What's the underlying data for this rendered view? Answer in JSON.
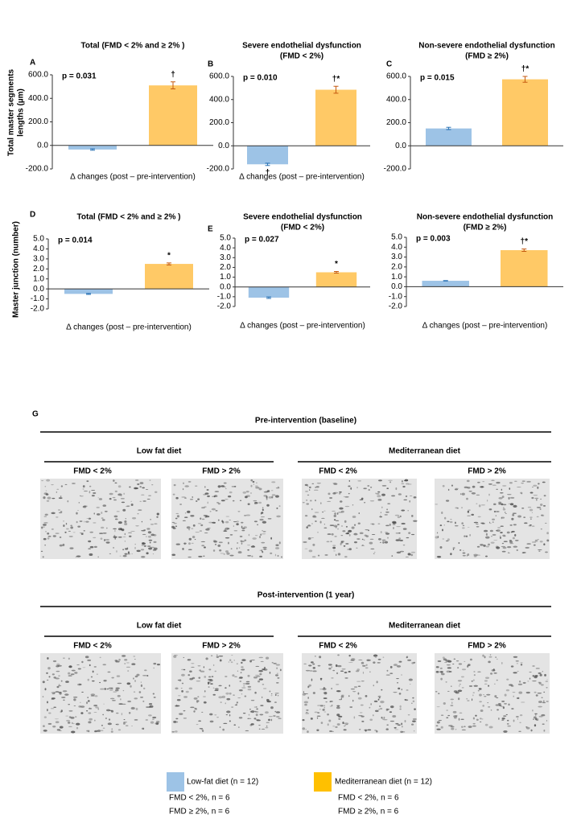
{
  "chart_data": [
    {
      "type": "bar",
      "panel": "A",
      "title": "Total (FMD < 2% and ≥ 2% )",
      "annotation": "p = 0.031",
      "ylabel": [
        "Total master segments",
        "lengths (µm)"
      ],
      "xlabel": "Δ changes (post – pre-intervention)",
      "values": [
        -35,
        510
      ],
      "errors": [
        6,
        30
      ],
      "markers": [
        null,
        "†"
      ],
      "colors": [
        "#9dc3e6",
        "#ffc966"
      ],
      "ylim": [
        -200,
        600
      ],
      "yticks": [
        {
          "value": 600,
          "label": "600.0"
        },
        {
          "value": 400,
          "label": "400.0"
        },
        {
          "value": 200,
          "label": "200.0"
        },
        {
          "value": 0,
          "label": "0.0"
        },
        {
          "value": -200,
          "label": "-200.0"
        }
      ]
    },
    {
      "type": "bar",
      "panel": "B",
      "title": "Severe endothelial dysfunction",
      "subtitle": "(FMD < 2%)",
      "annotation": "p = 0.010",
      "xlabel": "Δ changes (post – pre-intervention)",
      "values": [
        -160,
        485
      ],
      "errors": [
        10,
        30
      ],
      "markers": [
        "†",
        "†*"
      ],
      "colors": [
        "#9dc3e6",
        "#ffc966"
      ],
      "ylim": [
        -200,
        600
      ],
      "yticks": [
        {
          "value": 600,
          "label": "600.0"
        },
        {
          "value": 400,
          "label": "400.0"
        },
        {
          "value": 200,
          "label": "200.0"
        },
        {
          "value": 0,
          "label": "0.0"
        },
        {
          "value": -200,
          "label": "-200.0"
        }
      ]
    },
    {
      "type": "bar",
      "panel": "C",
      "title": "Non-severe endothelial dysfunction",
      "subtitle": "(FMD ≥ 2%)",
      "annotation": "p = 0.015",
      "values": [
        150,
        575
      ],
      "errors": [
        10,
        25
      ],
      "markers": [
        null,
        "†*"
      ],
      "colors": [
        "#9dc3e6",
        "#ffc966"
      ],
      "ylim": [
        -200,
        600
      ],
      "yticks": [
        {
          "value": 600,
          "label": "600.0"
        },
        {
          "value": 400,
          "label": "400.0"
        },
        {
          "value": 200,
          "label": "200.0"
        },
        {
          "value": 0,
          "label": "0.0"
        },
        {
          "value": -200,
          "label": "-200.0"
        }
      ]
    },
    {
      "type": "bar",
      "panel": "D",
      "title": "Total (FMD < 2% and ≥ 2% )",
      "annotation": "p = 0.014",
      "ylabel": [
        "Master junction (number)"
      ],
      "xlabel": "Δ changes (post – pre-intervention)",
      "values": [
        -0.5,
        2.5
      ],
      "errors": [
        0.05,
        0.1
      ],
      "markers": [
        null,
        "*"
      ],
      "colors": [
        "#9dc3e6",
        "#ffc966"
      ],
      "ylim": [
        -2,
        5
      ],
      "yticks": [
        {
          "value": 5,
          "label": "5.0"
        },
        {
          "value": 4,
          "label": "4.0"
        },
        {
          "value": 3,
          "label": "3.0"
        },
        {
          "value": 2,
          "label": "2.0"
        },
        {
          "value": 1,
          "label": "1.0"
        },
        {
          "value": 0,
          "label": "0.0"
        },
        {
          "value": -1,
          "label": "-1.0"
        },
        {
          "value": -2,
          "label": "-2.0"
        }
      ]
    },
    {
      "type": "bar",
      "panel": "E",
      "title": "Severe endothelial dysfunction",
      "subtitle": "(FMD < 2%)",
      "annotation": "p = 0.027",
      "xlabel": "Δ changes (post – pre-intervention)",
      "values": [
        -1.1,
        1.5
      ],
      "errors": [
        0.08,
        0.08
      ],
      "markers": [
        null,
        "*"
      ],
      "colors": [
        "#9dc3e6",
        "#ffc966"
      ],
      "ylim": [
        -2,
        5
      ],
      "yticks": [
        {
          "value": 5,
          "label": "5.0"
        },
        {
          "value": 4,
          "label": "4.0"
        },
        {
          "value": 3,
          "label": "3.0"
        },
        {
          "value": 2,
          "label": "2.0"
        },
        {
          "value": 1,
          "label": "1.0"
        },
        {
          "value": 0,
          "label": "0.0"
        },
        {
          "value": -1,
          "label": "-1.0"
        },
        {
          "value": -2,
          "label": "-2.0"
        }
      ]
    },
    {
      "type": "bar",
      "title": "Non-severe endothelial dysfunction",
      "subtitle": "(FMD ≥ 2%)",
      "annotation": "p = 0.003",
      "xlabel": "Δ changes (post – pre-intervention)",
      "values": [
        0.6,
        3.7
      ],
      "errors": [
        0.03,
        0.12
      ],
      "markers": [
        null,
        "†*"
      ],
      "colors": [
        "#9dc3e6",
        "#ffc966"
      ],
      "ylim": [
        -2,
        5
      ],
      "yticks": [
        {
          "value": 5,
          "label": "5.0"
        },
        {
          "value": 4,
          "label": "4.0"
        },
        {
          "value": 3,
          "label": "3.0"
        },
        {
          "value": 2,
          "label": "2.0"
        },
        {
          "value": 1,
          "label": "1.0"
        },
        {
          "value": 0,
          "label": "0.0"
        },
        {
          "value": -1,
          "label": "-1.0"
        },
        {
          "value": -2,
          "label": "-2.0"
        }
      ]
    }
  ],
  "panel_g": {
    "letter": "G",
    "sections": [
      {
        "title": "Pre-intervention (baseline)",
        "groups": [
          {
            "title": "Low fat diet",
            "labels": [
              "FMD < 2%",
              "FMD > 2%"
            ]
          },
          {
            "title": "Mediterranean diet",
            "labels": [
              "FMD < 2%",
              "FMD > 2%"
            ]
          }
        ]
      },
      {
        "title": "Post-intervention (1 year)",
        "groups": [
          {
            "title": "Low fat diet",
            "labels": [
              "FMD < 2%",
              "FMD > 2%"
            ]
          },
          {
            "title": "Mediterranean diet",
            "labels": [
              "FMD < 2%",
              "FMD > 2%"
            ]
          }
        ]
      }
    ]
  },
  "legend": [
    {
      "name": "Low-fat diet (n = 12)",
      "color": "#9dc3e6",
      "notes": [
        "FMD < 2%, n = 6",
        "FMD ≥ 2%, n = 6"
      ]
    },
    {
      "name": "Mediterranean diet (n = 12)",
      "color": "#ffc000",
      "notes": [
        "FMD < 2%, n = 6",
        "FMD ≥ 2%, n = 6"
      ]
    }
  ]
}
